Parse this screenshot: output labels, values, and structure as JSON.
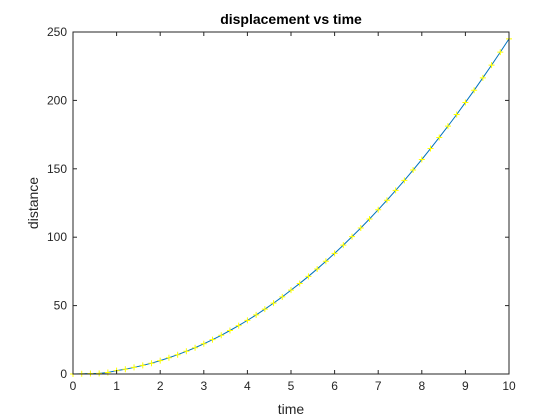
{
  "chart_data": {
    "type": "line",
    "title": "displacement vs time",
    "xlabel": "time",
    "ylabel": "distance",
    "xlim": [
      0,
      10
    ],
    "ylim": [
      0,
      250
    ],
    "xticks": [
      0,
      1,
      2,
      3,
      4,
      5,
      6,
      7,
      8,
      9,
      10
    ],
    "yticks": [
      0,
      50,
      100,
      150,
      200,
      250
    ],
    "grid": false,
    "box": true,
    "series": [
      {
        "marker": "+",
        "line_color": "#0072bd",
        "marker_color": "#ffff00",
        "x": [
          0,
          0.2,
          0.4,
          0.6,
          0.8,
          1.0,
          1.2,
          1.4,
          1.6,
          1.8,
          2.0,
          2.2,
          2.4,
          2.6,
          2.8,
          3.0,
          3.2,
          3.4,
          3.6,
          3.8,
          4.0,
          4.2,
          4.4,
          4.6,
          4.8,
          5.0,
          5.2,
          5.4,
          5.6,
          5.8,
          6.0,
          6.2,
          6.4,
          6.6,
          6.8,
          7.0,
          7.2,
          7.4,
          7.6,
          7.8,
          8.0,
          8.2,
          8.4,
          8.6,
          8.8,
          9.0,
          9.2,
          9.4,
          9.6,
          9.8,
          10.0
        ],
        "y": [
          0,
          0.2,
          0.4,
          0.5,
          1.1,
          2.5,
          3.5,
          4.8,
          6.3,
          7.9,
          9.8,
          11.9,
          14.1,
          16.6,
          19.2,
          22.1,
          25.1,
          28.3,
          31.8,
          35.4,
          39.2,
          43.2,
          47.4,
          51.8,
          56.4,
          61.3,
          66.2,
          71.4,
          76.8,
          82.4,
          88.2,
          94.2,
          100.4,
          106.7,
          113.3,
          120.1,
          127.0,
          134.2,
          141.5,
          149.1,
          156.8,
          164.8,
          172.9,
          181.2,
          189.7,
          198.5,
          207.4,
          216.5,
          225.8,
          235.3,
          245.0
        ]
      }
    ]
  }
}
